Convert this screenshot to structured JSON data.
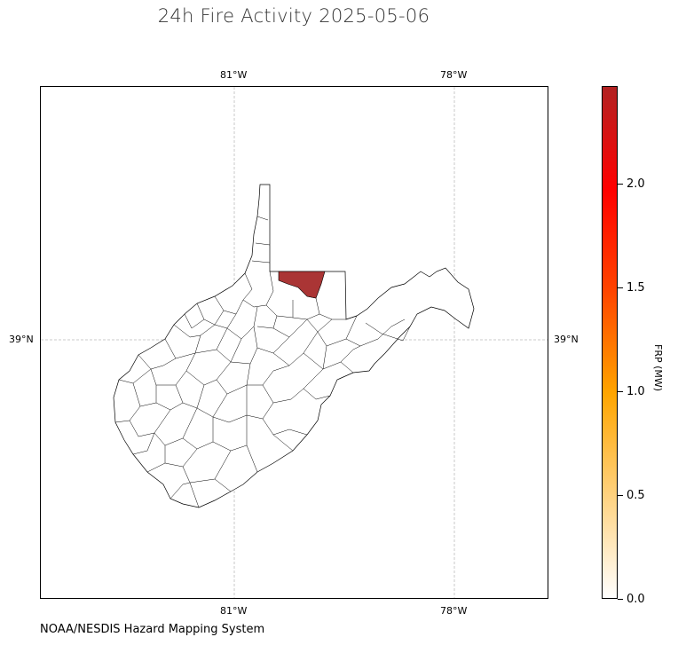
{
  "title": "24h Fire Activity 2025-05-06",
  "credit": "NOAA/NESDIS Hazard Mapping System",
  "map": {
    "projection": "PlateCarree",
    "gridlines": {
      "style": "dashed",
      "color": "#bbbbbb"
    },
    "lon_ticks": [
      "81°W",
      "78°W"
    ],
    "lat_ticks": [
      "39°N"
    ],
    "lon_tick_values": [
      -81,
      -78
    ],
    "lat_tick_values": [
      39
    ],
    "region_outline_color": "#000000",
    "region_fill": "#ffffff",
    "fire_county_fill": "#a52a2a"
  },
  "colorbar": {
    "label": "FRP (MW)",
    "range": [
      0.0,
      2.45
    ],
    "ticks": [
      "0.0",
      "0.5",
      "1.0",
      "1.5",
      "2.0"
    ],
    "tick_values": [
      0.0,
      0.5,
      1.0,
      1.5,
      2.0
    ],
    "colormap": [
      "#ffffff",
      "#ffd27f",
      "#ffa500",
      "#ff4500",
      "#ff0000",
      "#b22222"
    ]
  }
}
